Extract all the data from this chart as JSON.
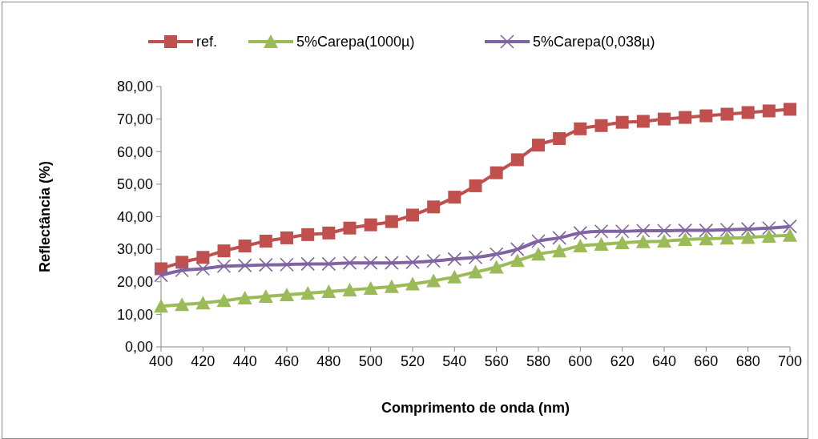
{
  "chart_data": {
    "type": "line",
    "xlabel": "Comprimento de onda (nm)",
    "ylabel": "Reflectância (%)",
    "x": [
      400,
      410,
      420,
      430,
      440,
      450,
      460,
      470,
      480,
      490,
      500,
      510,
      520,
      530,
      540,
      550,
      560,
      570,
      580,
      590,
      600,
      610,
      620,
      630,
      640,
      650,
      660,
      670,
      680,
      690,
      700
    ],
    "xlim": [
      400,
      700
    ],
    "xticks": [
      400,
      420,
      440,
      460,
      480,
      500,
      520,
      540,
      560,
      580,
      600,
      620,
      640,
      660,
      680,
      700
    ],
    "ylim": [
      0,
      80
    ],
    "yticks": [
      {
        "value": 0,
        "label": "0,00"
      },
      {
        "value": 10,
        "label": "10,00"
      },
      {
        "value": 20,
        "label": "20,00"
      },
      {
        "value": 30,
        "label": "30,00"
      },
      {
        "value": 40,
        "label": "40,00"
      },
      {
        "value": 50,
        "label": "50,00"
      },
      {
        "value": 60,
        "label": "60,00"
      },
      {
        "value": 70,
        "label": "70,00"
      },
      {
        "value": 80,
        "label": "80,00"
      }
    ],
    "grid": false,
    "legend": "top",
    "series": [
      {
        "name": "ref.",
        "color": "#c0504d",
        "marker": "square",
        "values": [
          24,
          26,
          27.5,
          29.5,
          31,
          32.5,
          33.5,
          34.5,
          35,
          36.5,
          37.5,
          38.5,
          40.5,
          43,
          46,
          49.5,
          53.5,
          57.5,
          62,
          64,
          67,
          68,
          69,
          69.3,
          70,
          70.5,
          71,
          71.5,
          72,
          72.5,
          73
        ]
      },
      {
        "name": "5%Carepa(1000µ)",
        "color": "#9bbb59",
        "marker": "triangle",
        "values": [
          12.5,
          13,
          13.5,
          14.2,
          15,
          15.5,
          16,
          16.5,
          17,
          17.5,
          18,
          18.5,
          19.3,
          20.3,
          21.5,
          23,
          24.5,
          26.5,
          28.5,
          29.5,
          31,
          31.5,
          32,
          32.3,
          32.5,
          33,
          33.2,
          33.4,
          33.6,
          34,
          34.3
        ]
      },
      {
        "name": "5%Carepa(0,038µ)",
        "color": "#8064a2",
        "marker": "cross",
        "values": [
          22,
          23.5,
          24,
          24.8,
          25,
          25.2,
          25.3,
          25.5,
          25.5,
          25.8,
          25.8,
          25.8,
          26,
          26.4,
          27,
          27.5,
          28.5,
          30,
          32.5,
          33.5,
          35,
          35.5,
          35.5,
          35.7,
          35.7,
          35.8,
          35.8,
          36,
          36.2,
          36.5,
          37
        ]
      }
    ]
  }
}
